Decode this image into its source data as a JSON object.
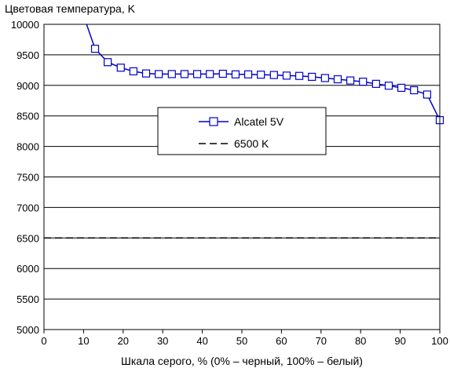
{
  "chart_data": {
    "type": "line",
    "title": "",
    "ylabel": "Цветовая температура, K",
    "xlabel": "Шкала серого, % (0% – черный, 100% – белый)",
    "xlim": [
      0,
      100
    ],
    "ylim": [
      5000,
      10000
    ],
    "x_ticks": [
      0,
      10,
      20,
      30,
      40,
      50,
      60,
      70,
      80,
      90,
      100
    ],
    "y_ticks": [
      5000,
      5500,
      6000,
      6500,
      7000,
      7500,
      8000,
      8500,
      9000,
      9500,
      10000
    ],
    "grid": "horizontal",
    "legend_position": "center",
    "series": [
      {
        "name": "Alcatel 5V",
        "color": "#0000cc",
        "marker": "square",
        "line_start": {
          "x": 10.5,
          "y": 10050
        },
        "points": [
          {
            "x": 12.9,
            "y": 9600
          },
          {
            "x": 16.1,
            "y": 9380
          },
          {
            "x": 19.4,
            "y": 9290
          },
          {
            "x": 22.6,
            "y": 9230
          },
          {
            "x": 25.8,
            "y": 9195
          },
          {
            "x": 29.0,
            "y": 9185
          },
          {
            "x": 32.3,
            "y": 9185
          },
          {
            "x": 35.5,
            "y": 9185
          },
          {
            "x": 38.7,
            "y": 9185
          },
          {
            "x": 41.9,
            "y": 9185
          },
          {
            "x": 45.2,
            "y": 9190
          },
          {
            "x": 48.4,
            "y": 9180
          },
          {
            "x": 51.6,
            "y": 9180
          },
          {
            "x": 54.8,
            "y": 9175
          },
          {
            "x": 58.1,
            "y": 9170
          },
          {
            "x": 61.3,
            "y": 9160
          },
          {
            "x": 64.5,
            "y": 9155
          },
          {
            "x": 67.7,
            "y": 9140
          },
          {
            "x": 71.0,
            "y": 9120
          },
          {
            "x": 74.2,
            "y": 9100
          },
          {
            "x": 77.4,
            "y": 9080
          },
          {
            "x": 80.6,
            "y": 9060
          },
          {
            "x": 83.9,
            "y": 9025
          },
          {
            "x": 87.1,
            "y": 8995
          },
          {
            "x": 90.3,
            "y": 8960
          },
          {
            "x": 93.5,
            "y": 8920
          },
          {
            "x": 96.8,
            "y": 8850
          },
          {
            "x": 100.0,
            "y": 8430
          }
        ]
      },
      {
        "name": "6500 K",
        "color": "#000000",
        "style": "dashed",
        "points": [
          {
            "x": 0,
            "y": 6500
          },
          {
            "x": 100,
            "y": 6500
          }
        ]
      }
    ]
  }
}
